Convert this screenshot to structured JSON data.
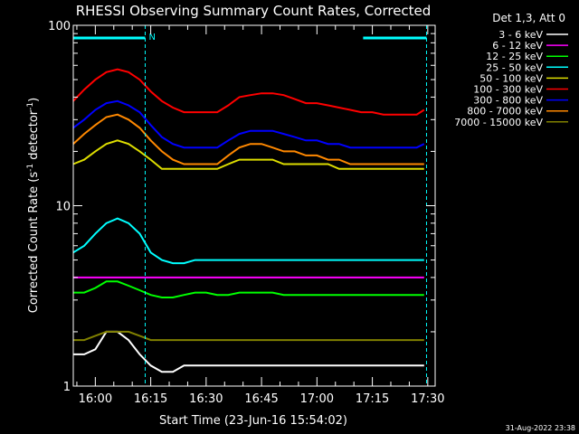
{
  "chart_data": {
    "type": "line",
    "title": "RHESSI Observing Summary Count Rates, Corrected",
    "xlabel": "Start Time (23-Jun-16 15:54:02)",
    "ylabel_main": "Corrected Count Rate (s",
    "ylabel_sup1": "-1",
    "ylabel_mid": " detector",
    "ylabel_sup2": "-1",
    "ylabel_end": ")",
    "ylim": [
      1,
      100
    ],
    "yscale": "log",
    "xlim": [
      "15:54:02",
      "17:32:00"
    ],
    "grid": false,
    "legend_position": "top-right",
    "legend_title": "Det 1,3, Att 0",
    "y_ticks": [
      {
        "value": 1,
        "label": "1"
      },
      {
        "value": 10,
        "label": "10"
      },
      {
        "value": 100,
        "label": "100"
      }
    ],
    "x_ticks": [
      {
        "value": "16:00",
        "label": "16:00"
      },
      {
        "value": "16:15",
        "label": "16:15"
      },
      {
        "value": "16:30",
        "label": "16:30"
      },
      {
        "value": "16:45",
        "label": "16:45"
      },
      {
        "value": "17:00",
        "label": "17:00"
      },
      {
        "value": "17:15",
        "label": "17:15"
      },
      {
        "value": "17:30",
        "label": "17:30"
      }
    ],
    "night_bars": [
      {
        "start": "15:54:02",
        "end": "16:13:30",
        "label": "N"
      },
      {
        "start": "17:12:30",
        "end": "17:29:40",
        "label": ""
      }
    ],
    "x": [
      "15:54",
      "15:57",
      "16:00",
      "16:03",
      "16:06",
      "16:09",
      "16:12",
      "16:15",
      "16:18",
      "16:21",
      "16:24",
      "16:27",
      "16:30",
      "16:33",
      "16:36",
      "16:39",
      "16:42",
      "16:45",
      "16:48",
      "16:51",
      "16:54",
      "16:57",
      "17:00",
      "17:03",
      "17:06",
      "17:09",
      "17:12",
      "17:15",
      "17:18",
      "17:21",
      "17:24",
      "17:27",
      "17:29"
    ],
    "series": [
      {
        "name": "3 - 6 keV",
        "color": "#ffffff",
        "values": [
          1.5,
          1.5,
          1.6,
          2.0,
          2.0,
          1.8,
          1.5,
          1.3,
          1.2,
          1.2,
          1.3,
          1.3,
          1.3,
          1.3,
          1.3,
          1.3,
          1.3,
          1.3,
          1.3,
          1.3,
          1.3,
          1.3,
          1.3,
          1.3,
          1.3,
          1.3,
          1.3,
          1.3,
          1.3,
          1.3,
          1.3,
          1.3,
          1.3
        ]
      },
      {
        "name": "6 - 12 keV",
        "color": "#ff00ff",
        "values": [
          4.0,
          4.0,
          4.0,
          4.0,
          4.0,
          4.0,
          4.0,
          4.0,
          4.0,
          4.0,
          4.0,
          4.0,
          4.0,
          4.0,
          4.0,
          4.0,
          4.0,
          4.0,
          4.0,
          4.0,
          4.0,
          4.0,
          4.0,
          4.0,
          4.0,
          4.0,
          4.0,
          4.0,
          4.0,
          4.0,
          4.0,
          4.0,
          4.0
        ]
      },
      {
        "name": "12 - 25 keV",
        "color": "#00ff00",
        "values": [
          3.3,
          3.3,
          3.5,
          3.8,
          3.8,
          3.6,
          3.4,
          3.2,
          3.1,
          3.1,
          3.2,
          3.3,
          3.3,
          3.2,
          3.2,
          3.3,
          3.3,
          3.3,
          3.3,
          3.2,
          3.2,
          3.2,
          3.2,
          3.2,
          3.2,
          3.2,
          3.2,
          3.2,
          3.2,
          3.2,
          3.2,
          3.2,
          3.2
        ]
      },
      {
        "name": "25 - 50 keV",
        "color": "#00ffff",
        "values": [
          5.5,
          6.0,
          7.0,
          8.0,
          8.5,
          8.0,
          7.0,
          5.5,
          5.0,
          4.8,
          4.8,
          5.0,
          5.0,
          5.0,
          5.0,
          5.0,
          5.0,
          5.0,
          5.0,
          5.0,
          5.0,
          5.0,
          5.0,
          5.0,
          5.0,
          5.0,
          5.0,
          5.0,
          5.0,
          5.0,
          5.0,
          5.0,
          5.0
        ]
      },
      {
        "name": "50 - 100 keV",
        "color": "#dddd00",
        "values": [
          17,
          18,
          20,
          22,
          23,
          22,
          20,
          18,
          16,
          16,
          16,
          16,
          16,
          16,
          17,
          18,
          18,
          18,
          18,
          17,
          17,
          17,
          17,
          17,
          16,
          16,
          16,
          16,
          16,
          16,
          16,
          16,
          16
        ]
      },
      {
        "name": "100 - 300 keV",
        "color": "#ff0000",
        "values": [
          38,
          44,
          50,
          55,
          57,
          55,
          50,
          43,
          38,
          35,
          33,
          33,
          33,
          33,
          36,
          40,
          41,
          42,
          42,
          41,
          39,
          37,
          37,
          36,
          35,
          34,
          33,
          33,
          32,
          32,
          32,
          32,
          34
        ]
      },
      {
        "name": "300 - 800 keV",
        "color": "#0000ff",
        "values": [
          27,
          30,
          34,
          37,
          38,
          36,
          33,
          28,
          24,
          22,
          21,
          21,
          21,
          21,
          23,
          25,
          26,
          26,
          26,
          25,
          24,
          23,
          23,
          22,
          22,
          21,
          21,
          21,
          21,
          21,
          21,
          21,
          22
        ]
      },
      {
        "name": "800 - 7000 keV",
        "color": "#ff8800",
        "values": [
          22,
          25,
          28,
          31,
          32,
          30,
          27,
          23,
          20,
          18,
          17,
          17,
          17,
          17,
          19,
          21,
          22,
          22,
          21,
          20,
          20,
          19,
          19,
          18,
          18,
          17,
          17,
          17,
          17,
          17,
          17,
          17,
          17
        ]
      },
      {
        "name": "7000 - 15000 keV",
        "color": "#808000",
        "values": [
          1.8,
          1.8,
          1.9,
          2.0,
          2.0,
          2.0,
          1.9,
          1.8,
          1.8,
          1.8,
          1.8,
          1.8,
          1.8,
          1.8,
          1.8,
          1.8,
          1.8,
          1.8,
          1.8,
          1.8,
          1.8,
          1.8,
          1.8,
          1.8,
          1.8,
          1.8,
          1.8,
          1.8,
          1.8,
          1.8,
          1.8,
          1.8,
          1.8
        ]
      }
    ],
    "footer_timestamp": "31-Aug-2022 23:38"
  }
}
